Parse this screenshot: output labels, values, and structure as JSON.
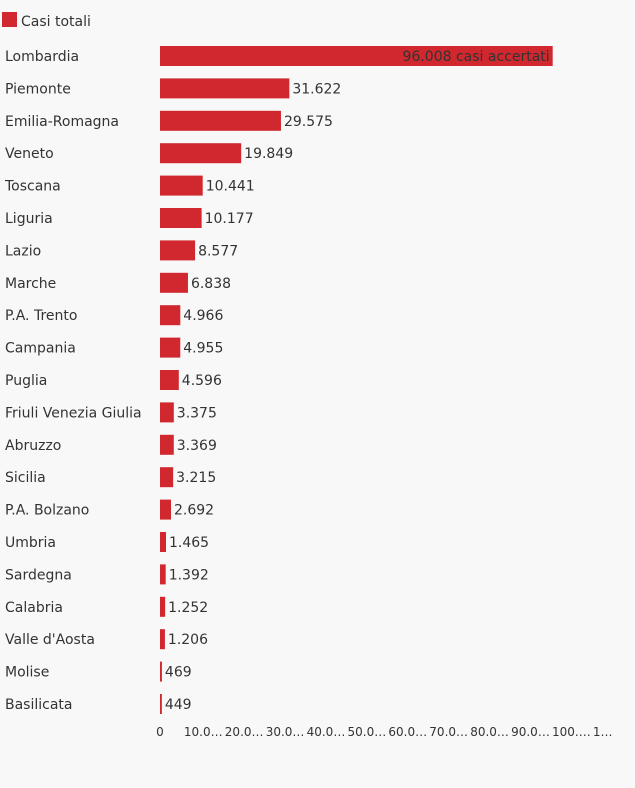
{
  "chart_data": {
    "type": "bar",
    "orientation": "horizontal",
    "legend": {
      "position": "top-left",
      "entries": [
        {
          "label": "Casi totali",
          "color": "#d0282e"
        }
      ]
    },
    "series": [
      {
        "name": "Casi totali",
        "color": "#d0282e",
        "values": [
          96008,
          31622,
          29575,
          19849,
          10441,
          10177,
          8577,
          6838,
          4966,
          4955,
          4596,
          3375,
          3369,
          3215,
          2692,
          1465,
          1392,
          1252,
          1206,
          469,
          449
        ]
      }
    ],
    "categories": [
      "Lombardia",
      "Piemonte",
      "Emilia-Romagna",
      "Veneto",
      "Toscana",
      "Liguria",
      "Lazio",
      "Marche",
      "P.A. Trento",
      "Campania",
      "Puglia",
      "Friuli Venezia Giulia",
      "Abruzzo",
      "Sicilia",
      "P.A. Bolzano",
      "Umbria",
      "Sardegna",
      "Calabria",
      "Valle d'Aosta",
      "Molise",
      "Basilicata"
    ],
    "value_labels": [
      "96.008 casi accertati",
      "31.622",
      "29.575",
      "19.849",
      "10.441",
      "10.177",
      "8.577",
      "6.838",
      "4.966",
      "4.955",
      "4.596",
      "3.375",
      "3.369",
      "3.215",
      "2.692",
      "1.465",
      "1.392",
      "1.252",
      "1.206",
      "469",
      "449"
    ],
    "x_ticks": [
      0,
      10000,
      20000,
      30000,
      40000,
      50000,
      60000,
      70000,
      80000,
      90000,
      100000,
      110000
    ],
    "x_tick_labels": [
      "0",
      "10.0…",
      "20.0…",
      "30.0…",
      "40.0…",
      "50.0…",
      "60.0…",
      "70.0…",
      "80.0…",
      "90.0…",
      "100.…",
      "1…"
    ],
    "xlim": [
      0,
      110000
    ],
    "grid": false
  }
}
